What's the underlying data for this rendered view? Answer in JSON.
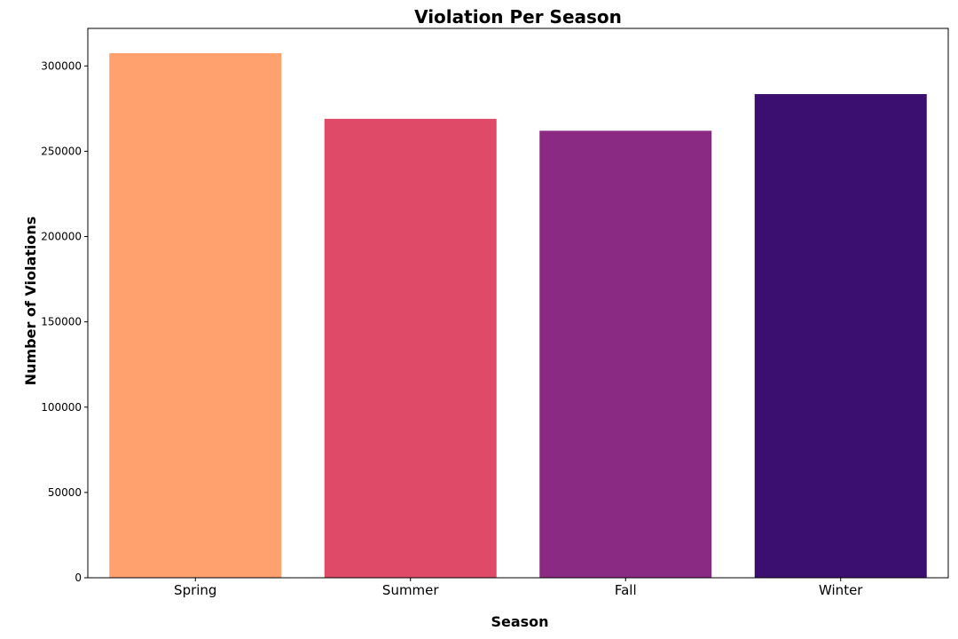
{
  "chart_data": {
    "type": "bar",
    "title": "Violation Per Season",
    "xlabel": "Season",
    "ylabel": "Number of Violations",
    "categories": [
      "Spring",
      "Summer",
      "Fall",
      "Winter"
    ],
    "values": [
      307500,
      269000,
      262000,
      283500
    ],
    "colors": [
      "#fea16e",
      "#df4a68",
      "#8b2a82",
      "#3b0f70"
    ],
    "ylim": [
      0,
      322000
    ],
    "yticks": [
      0,
      50000,
      100000,
      150000,
      200000,
      250000,
      300000
    ],
    "grid": false,
    "legend": "none"
  }
}
